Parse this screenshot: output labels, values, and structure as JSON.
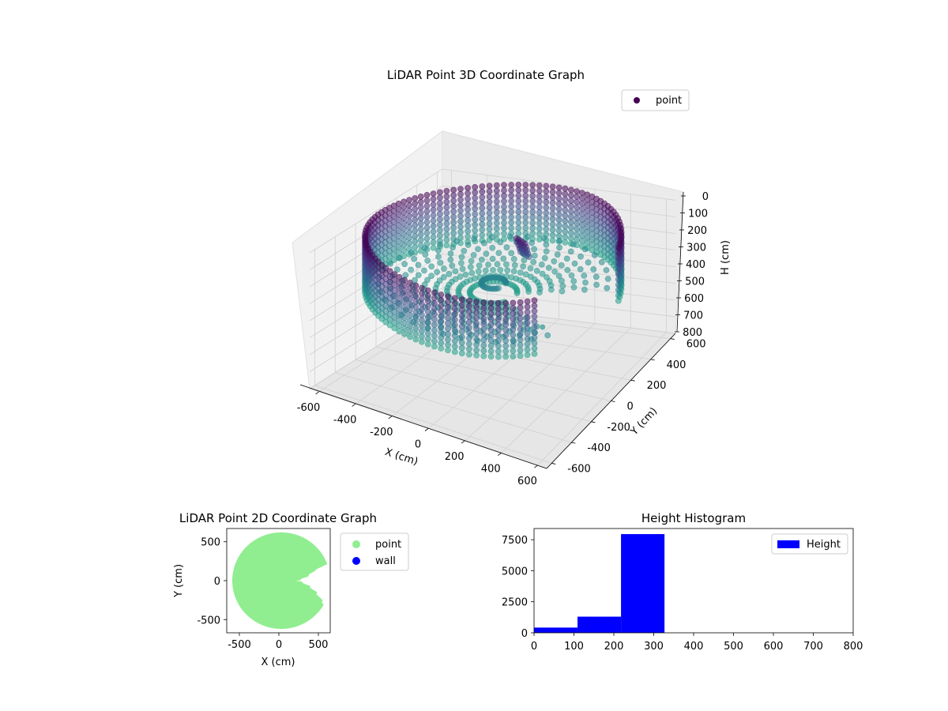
{
  "chart_data": [
    {
      "type": "scatter",
      "projection": "3d",
      "title": "LiDAR Point 3D Coordinate Graph",
      "xlabel": "X (cm)",
      "ylabel": "Y (cm)",
      "zlabel": "H (cm)",
      "x_ticks": [
        -600,
        -400,
        -200,
        0,
        200,
        400,
        600
      ],
      "y_ticks": [
        600,
        400,
        200,
        0,
        -200,
        -400,
        -600
      ],
      "z_ticks": [
        0,
        100,
        200,
        300,
        400,
        500,
        600,
        700,
        800
      ],
      "xlim": [
        -650,
        650
      ],
      "ylim": [
        -650,
        650
      ],
      "zlim": [
        0,
        800
      ],
      "z_inverted": true,
      "grid": true,
      "legend": {
        "position": "top-right",
        "entries": [
          "point"
        ]
      },
      "series": [
        {
          "name": "point",
          "shape": "ring wall of points, radius about 620 cm, heights 0-320 cm, plus interior floor points and a cluster near the center",
          "color_scale": "viridis"
        }
      ],
      "stray_points": [
        {
          "x": 600,
          "y": -600,
          "h": 0
        },
        {
          "x": 560,
          "y": -650,
          "h": 0
        }
      ]
    },
    {
      "type": "scatter",
      "title": "LiDAR Point 2D Coordinate Graph",
      "xlabel": "X (cm)",
      "ylabel": "Y (cm)",
      "x_ticks": [
        -500,
        0,
        500
      ],
      "y_ticks": [
        500,
        0,
        -500
      ],
      "xlim": [
        -660,
        650
      ],
      "ylim": [
        -670,
        670
      ],
      "legend": {
        "position": "right-outside",
        "entries": [
          "point",
          "wall"
        ]
      },
      "series": [
        {
          "name": "point",
          "color": "#90ee90",
          "shape": "filled disc of radius ~620 cm centered near (0,0) with a wedge notch on the right side"
        },
        {
          "name": "wall",
          "color": "#0000ff"
        }
      ]
    },
    {
      "type": "bar",
      "subtype": "histogram",
      "title": "Height Histogram",
      "xlabel": "",
      "ylabel": "",
      "x_ticks": [
        0,
        100,
        200,
        300,
        400,
        500,
        600,
        700,
        800
      ],
      "y_ticks": [
        0,
        2500,
        5000,
        7500
      ],
      "xlim": [
        0,
        800
      ],
      "ylim": [
        0,
        8400
      ],
      "legend": {
        "position": "top-right",
        "entries": [
          "Height"
        ]
      },
      "series": [
        {
          "name": "Height",
          "color": "#0000ff",
          "bins": [
            {
              "x0": 0,
              "x1": 109,
              "count": 420
            },
            {
              "x0": 109,
              "x1": 218,
              "count": 1300
            },
            {
              "x0": 218,
              "x1": 327,
              "count": 7950
            }
          ]
        }
      ]
    }
  ]
}
